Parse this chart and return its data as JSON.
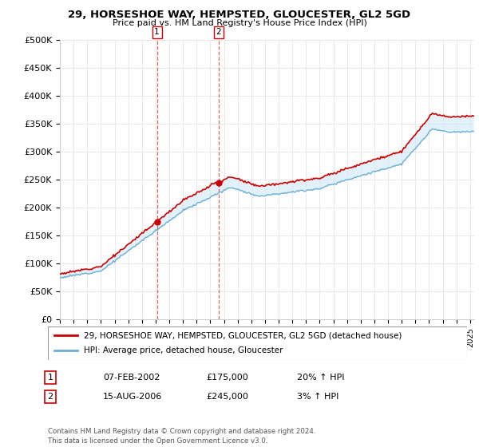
{
  "title": "29, HORSESHOE WAY, HEMPSTED, GLOUCESTER, GL2 5GD",
  "subtitle": "Price paid vs. HM Land Registry's House Price Index (HPI)",
  "legend_label_red": "29, HORSESHOE WAY, HEMPSTED, GLOUCESTER, GL2 5GD (detached house)",
  "legend_label_blue": "HPI: Average price, detached house, Gloucester",
  "sale1_date": "07-FEB-2002",
  "sale1_price": "£175,000",
  "sale1_hpi": "20% ↑ HPI",
  "sale2_date": "15-AUG-2006",
  "sale2_price": "£245,000",
  "sale2_hpi": "3% ↑ HPI",
  "footer": "Contains HM Land Registry data © Crown copyright and database right 2024.\nThis data is licensed under the Open Government Licence v3.0.",
  "ylim": [
    0,
    500000
  ],
  "yticks": [
    0,
    50000,
    100000,
    150000,
    200000,
    250000,
    300000,
    350000,
    400000,
    450000,
    500000
  ],
  "grid_color": "#e0e0e0",
  "red_color": "#cc0000",
  "blue_color": "#6baed6",
  "shade_color": "#d0e8f8",
  "vline1_x": 2002.1,
  "vline2_x": 2006.6,
  "marker1_x": 2002.1,
  "marker1_y": 175000,
  "marker2_x": 2006.6,
  "marker2_y": 245000,
  "xmin": 1995,
  "xmax": 2025.3
}
